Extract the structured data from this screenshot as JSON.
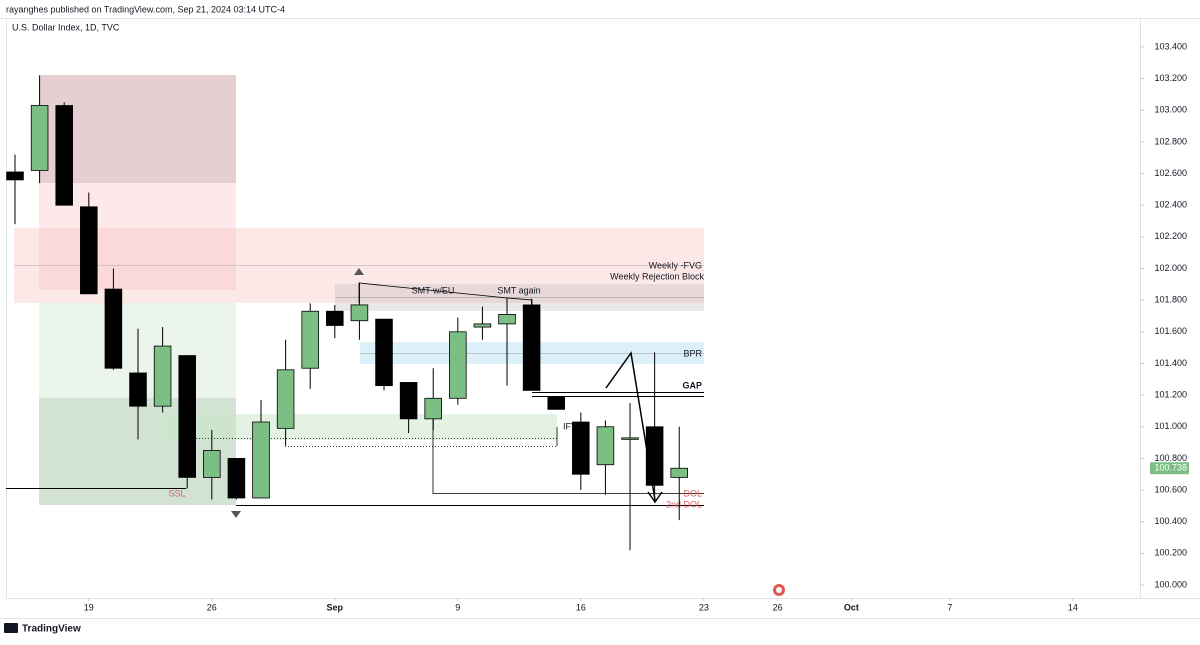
{
  "header": {
    "publisher": "rayanghes published on TradingView.com, Sep 21, 2024 03:14 UTC-4",
    "footer": "TradingView"
  },
  "chart_data": {
    "type": "candlestick",
    "title": "U.S. Dollar Index, 1D, TVC",
    "x": [
      0,
      1,
      2,
      3,
      4,
      5,
      6,
      7,
      8,
      9,
      10,
      11,
      12,
      13,
      14,
      15,
      16,
      17,
      18,
      19,
      20,
      21,
      22,
      23,
      24,
      25,
      26,
      27
    ],
    "open": [
      102.61,
      102.62,
      103.03,
      102.39,
      101.87,
      101.34,
      101.13,
      101.45,
      100.68,
      100.8,
      100.55,
      100.99,
      101.37,
      101.73,
      101.67,
      101.68,
      101.28,
      101.05,
      101.18,
      101.63,
      101.65,
      101.77,
      101.19,
      101.03,
      100.76,
      100.93,
      101.0,
      100.68
    ],
    "high": [
      102.72,
      103.22,
      103.05,
      102.48,
      102.0,
      101.62,
      101.63,
      101.45,
      100.98,
      100.8,
      101.17,
      101.55,
      101.78,
      101.77,
      101.91,
      101.68,
      101.28,
      101.37,
      101.69,
      101.76,
      101.81,
      101.81,
      101.19,
      101.09,
      101.04,
      101.15,
      101.47,
      101.0
    ],
    "low": [
      102.28,
      102.54,
      102.4,
      101.84,
      101.36,
      100.92,
      101.09,
      100.61,
      100.54,
      100.54,
      100.55,
      100.88,
      101.24,
      101.56,
      101.55,
      101.23,
      100.96,
      100.98,
      101.14,
      101.55,
      101.26,
      101.23,
      101.11,
      100.6,
      100.57,
      100.22,
      100.52,
      100.41
    ],
    "close": [
      102.56,
      103.03,
      102.4,
      101.84,
      101.37,
      101.13,
      101.51,
      100.68,
      100.85,
      100.55,
      101.03,
      101.36,
      101.73,
      101.64,
      101.77,
      101.26,
      101.05,
      101.18,
      101.6,
      101.65,
      101.71,
      101.23,
      101.11,
      100.7,
      101.0,
      100.93,
      100.63,
      100.738
    ],
    "up_color": "#7cbf84",
    "down_color": "#000000",
    "xlim": [
      -0.366,
      45.73
    ],
    "xticks": [
      {
        "value": 3,
        "label": "19"
      },
      {
        "value": 8,
        "label": "26"
      },
      {
        "value": 13,
        "label": "Sep"
      },
      {
        "value": 18,
        "label": "9"
      },
      {
        "value": 23,
        "label": "16"
      },
      {
        "value": 28,
        "label": "23"
      },
      {
        "value": 31,
        "label": "26"
      },
      {
        "value": 34,
        "label": "Oct"
      },
      {
        "value": 38,
        "label": "7"
      },
      {
        "value": 43,
        "label": "14"
      }
    ],
    "ylim": [
      99.918,
      103.583
    ],
    "yticks": [
      {
        "value": 100,
        "label": "100.000"
      },
      {
        "value": 100.2,
        "label": "100.200"
      },
      {
        "value": 100.4,
        "label": "100.400"
      },
      {
        "value": 100.6,
        "label": "100.600"
      },
      {
        "value": 100.8,
        "label": "100.800"
      },
      {
        "value": 101,
        "label": "101.000"
      },
      {
        "value": 101.2,
        "label": "101.200"
      },
      {
        "value": 101.4,
        "label": "101.400"
      },
      {
        "value": 101.6,
        "label": "101.600"
      },
      {
        "value": 101.8,
        "label": "101.800"
      },
      {
        "value": 102,
        "label": "102.000"
      },
      {
        "value": 102.2,
        "label": "102.200"
      },
      {
        "value": 102.4,
        "label": "102.400"
      },
      {
        "value": 102.6,
        "label": "102.600"
      },
      {
        "value": 102.8,
        "label": "102.800"
      },
      {
        "value": 103,
        "label": "103.000"
      },
      {
        "value": 103.2,
        "label": "103.200"
      },
      {
        "value": 103.4,
        "label": "103.400"
      }
    ],
    "last_price": {
      "value": 100.738,
      "label": "100.738"
    },
    "annotations": {
      "fvg": "Weekly -FVG",
      "rejection": "Weekly Rejection Block",
      "smt1": "SMT w/EU",
      "smt2": "SMT again",
      "bpr": "BPR",
      "gap": "GAP",
      "ifvg": "IFVG",
      "ssl": "SSL",
      "dol": "DOL",
      "dol2": "2nd DOL"
    }
  }
}
